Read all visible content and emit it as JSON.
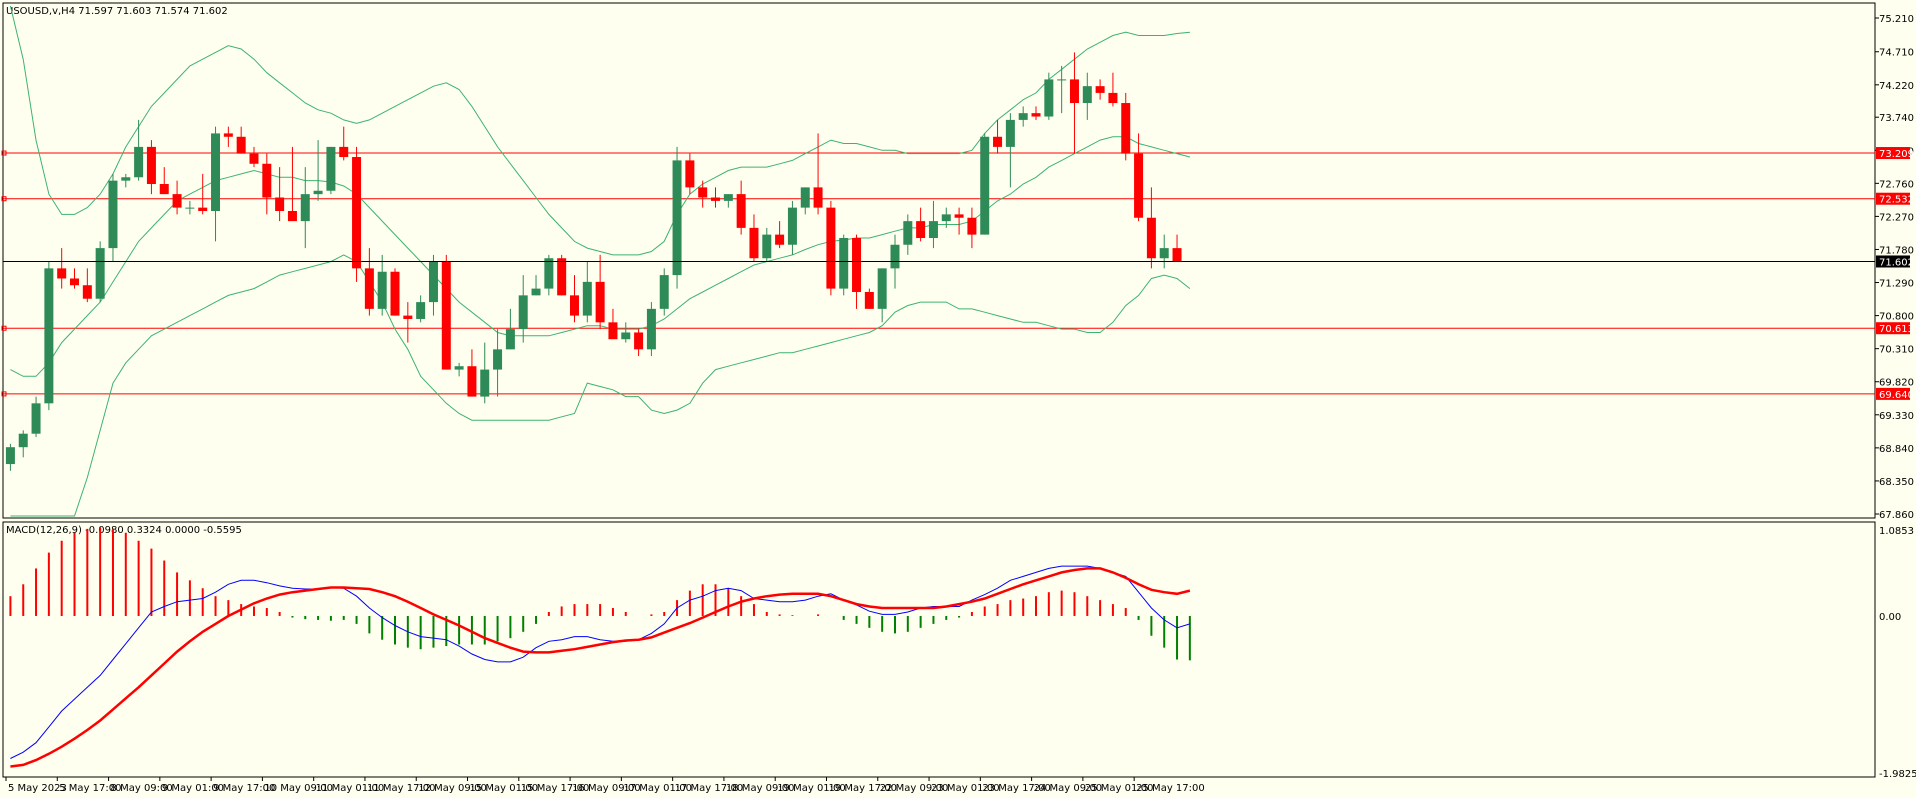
{
  "header": {
    "title": "USOUSD,v,H4  71.597 71.603 71.574 71.602",
    "macd_title": "MACD(12,26,9) -0.0980 0.3324 0.0000 -0.5595"
  },
  "colors": {
    "background": "#fffff0",
    "bull": "#2e8b57",
    "bear": "#ff0000",
    "bands": "#3cb371",
    "level": "#ff0000",
    "macd_line": "#0000ff",
    "signal_line": "#ff0000"
  },
  "chart_data": [
    {
      "type": "candlestick",
      "symbol": "USOUSD,v",
      "timeframe": "H4",
      "ylim": [
        67.86,
        75.21
      ],
      "yticks": [
        "75.210",
        "74.710",
        "74.220",
        "73.740",
        "73.250",
        "72.760",
        "72.270",
        "71.780",
        "71.290",
        "70.800",
        "70.310",
        "69.820",
        "69.330",
        "68.840",
        "68.350",
        "67.860"
      ],
      "xticks": [
        "5 May 2023",
        "5 May 17:00",
        "8 May 09:00",
        "9 May 01:00",
        "9 May 17:00",
        "10 May 09:00",
        "11 May 01:00",
        "11 May 17:00",
        "12 May 09:00",
        "15 May 01:00",
        "15 May 17:00",
        "16 May 09:00",
        "17 May 01:00",
        "17 May 17:00",
        "18 May 09:00",
        "19 May 01:00",
        "19 May 17:00",
        "22 May 09:00",
        "23 May 01:00",
        "23 May 17:00",
        "24 May 09:00",
        "25 May 01:00",
        "25 May 17:00"
      ],
      "current_price": "71.602",
      "levels": [
        "73.209",
        "72.532",
        "70.613",
        "69.640"
      ],
      "ohlc": [
        [
          68.6,
          68.9,
          68.5,
          68.85
        ],
        [
          68.85,
          69.1,
          68.7,
          69.05
        ],
        [
          69.05,
          69.6,
          69.0,
          69.5
        ],
        [
          69.5,
          71.6,
          69.4,
          71.5
        ],
        [
          71.5,
          71.8,
          71.2,
          71.35
        ],
        [
          71.35,
          71.5,
          71.2,
          71.25
        ],
        [
          71.25,
          71.5,
          71.0,
          71.05
        ],
        [
          71.05,
          71.9,
          71.0,
          71.8
        ],
        [
          71.8,
          72.9,
          71.6,
          72.8
        ],
        [
          72.8,
          72.9,
          72.7,
          72.85
        ],
        [
          72.85,
          73.7,
          72.8,
          73.3
        ],
        [
          73.3,
          73.4,
          72.6,
          72.75
        ],
        [
          72.75,
          73.0,
          72.6,
          72.6
        ],
        [
          72.6,
          72.8,
          72.3,
          72.4
        ],
        [
          72.4,
          72.5,
          72.3,
          72.4
        ],
        [
          72.4,
          72.9,
          72.3,
          72.35
        ],
        [
          72.35,
          73.6,
          71.9,
          73.5
        ],
        [
          73.5,
          73.6,
          73.3,
          73.45
        ],
        [
          73.45,
          73.6,
          73.2,
          73.2
        ],
        [
          73.2,
          73.3,
          73.0,
          73.05
        ],
        [
          73.05,
          73.2,
          72.3,
          72.55
        ],
        [
          72.55,
          73.0,
          72.2,
          72.35
        ],
        [
          72.35,
          73.3,
          72.2,
          72.2
        ],
        [
          72.2,
          73.0,
          71.8,
          72.6
        ],
        [
          72.6,
          73.4,
          72.5,
          72.65
        ],
        [
          72.65,
          73.3,
          72.6,
          73.3
        ],
        [
          73.3,
          73.6,
          73.1,
          73.15
        ],
        [
          73.15,
          73.3,
          71.3,
          71.5
        ],
        [
          71.5,
          71.8,
          70.8,
          70.9
        ],
        [
          70.9,
          71.7,
          70.8,
          71.45
        ],
        [
          71.45,
          71.5,
          70.8,
          70.8
        ],
        [
          70.8,
          71.0,
          70.4,
          70.75
        ],
        [
          70.75,
          71.1,
          70.7,
          71.0
        ],
        [
          71.0,
          71.7,
          70.8,
          71.6
        ],
        [
          71.6,
          71.7,
          70.0,
          70.0
        ],
        [
          70.0,
          70.1,
          69.9,
          70.05
        ],
        [
          70.05,
          70.3,
          69.6,
          69.6
        ],
        [
          69.6,
          70.4,
          69.5,
          70.0
        ],
        [
          70.0,
          70.6,
          69.6,
          70.3
        ],
        [
          70.3,
          70.9,
          70.3,
          70.6
        ],
        [
          70.6,
          71.4,
          70.4,
          71.1
        ],
        [
          71.1,
          71.4,
          71.1,
          71.2
        ],
        [
          71.2,
          71.7,
          71.1,
          71.65
        ],
        [
          71.65,
          71.7,
          71.1,
          71.1
        ],
        [
          71.1,
          71.4,
          70.7,
          70.8
        ],
        [
          70.8,
          71.6,
          70.7,
          71.3
        ],
        [
          71.3,
          71.7,
          70.6,
          70.7
        ],
        [
          70.7,
          70.9,
          70.5,
          70.45
        ],
        [
          70.45,
          70.7,
          70.4,
          70.55
        ],
        [
          70.55,
          70.6,
          70.2,
          70.3
        ],
        [
          70.3,
          71.0,
          70.2,
          70.9
        ],
        [
          70.9,
          71.5,
          70.8,
          71.4
        ],
        [
          71.4,
          73.3,
          71.2,
          73.1
        ],
        [
          73.1,
          73.2,
          72.6,
          72.7
        ],
        [
          72.7,
          72.8,
          72.4,
          72.55
        ],
        [
          72.55,
          72.7,
          72.4,
          72.5
        ],
        [
          72.5,
          72.6,
          72.4,
          72.6
        ],
        [
          72.6,
          72.8,
          72.0,
          72.1
        ],
        [
          72.1,
          72.3,
          71.6,
          71.65
        ],
        [
          71.65,
          72.1,
          71.6,
          72.0
        ],
        [
          72.0,
          72.2,
          71.8,
          71.85
        ],
        [
          71.85,
          72.5,
          71.7,
          72.4
        ],
        [
          72.4,
          72.7,
          72.3,
          72.7
        ],
        [
          72.7,
          73.5,
          72.3,
          72.4
        ],
        [
          72.4,
          72.5,
          71.1,
          71.2
        ],
        [
          71.2,
          72.0,
          71.1,
          71.95
        ],
        [
          71.95,
          72.0,
          70.9,
          71.15
        ],
        [
          71.15,
          71.2,
          70.9,
          70.9
        ],
        [
          70.9,
          71.5,
          70.7,
          71.5
        ],
        [
          71.5,
          72.0,
          71.2,
          71.85
        ],
        [
          71.85,
          72.3,
          71.7,
          72.2
        ],
        [
          72.2,
          72.4,
          71.9,
          71.95
        ],
        [
          71.95,
          72.5,
          71.8,
          72.2
        ],
        [
          72.2,
          72.4,
          72.1,
          72.3
        ],
        [
          72.3,
          72.4,
          72.0,
          72.25
        ],
        [
          72.25,
          72.4,
          71.8,
          72.0
        ],
        [
          72.0,
          73.5,
          72.0,
          73.45
        ],
        [
          73.45,
          73.7,
          73.2,
          73.3
        ],
        [
          73.3,
          73.8,
          72.7,
          73.7
        ],
        [
          73.7,
          73.9,
          73.6,
          73.8
        ],
        [
          73.8,
          73.9,
          73.7,
          73.75
        ],
        [
          73.75,
          74.4,
          73.7,
          74.3
        ],
        [
          74.3,
          74.5,
          73.8,
          74.3
        ],
        [
          74.3,
          74.7,
          73.2,
          73.95
        ],
        [
          73.95,
          74.4,
          73.7,
          74.2
        ],
        [
          74.2,
          74.3,
          74.0,
          74.1
        ],
        [
          74.1,
          74.4,
          73.9,
          73.95
        ],
        [
          73.95,
          74.1,
          73.1,
          73.2
        ],
        [
          73.2,
          73.5,
          72.2,
          72.25
        ],
        [
          72.25,
          72.7,
          71.5,
          71.65
        ],
        [
          71.65,
          72.0,
          71.5,
          71.8
        ],
        [
          71.8,
          72.0,
          71.6,
          71.6
        ]
      ],
      "upper_band": [
        75.5,
        74.6,
        73.4,
        72.6,
        72.3,
        72.3,
        72.4,
        72.6,
        72.9,
        73.3,
        73.6,
        73.9,
        74.1,
        74.3,
        74.5,
        74.6,
        74.7,
        74.8,
        74.75,
        74.6,
        74.4,
        74.25,
        74.1,
        73.95,
        73.85,
        73.8,
        73.7,
        73.65,
        73.7,
        73.8,
        73.9,
        74.0,
        74.1,
        74.2,
        74.25,
        74.15,
        73.9,
        73.6,
        73.3,
        73.05,
        72.8,
        72.55,
        72.3,
        72.1,
        71.9,
        71.8,
        71.75,
        71.7,
        71.7,
        71.7,
        71.75,
        71.9,
        72.3,
        72.6,
        72.75,
        72.85,
        72.95,
        73.0,
        73.0,
        73.0,
        73.05,
        73.1,
        73.2,
        73.3,
        73.4,
        73.35,
        73.35,
        73.3,
        73.25,
        73.25,
        73.2,
        73.2,
        73.2,
        73.2,
        73.2,
        73.25,
        73.5,
        73.7,
        73.85,
        74.0,
        74.1,
        74.3,
        74.45,
        74.6,
        74.75,
        74.85,
        74.95,
        75.0,
        74.95,
        74.95,
        74.95,
        74.98,
        75.0
      ],
      "middle_band": [
        70.0,
        69.9,
        69.9,
        70.1,
        70.4,
        70.6,
        70.8,
        71.0,
        71.3,
        71.6,
        71.9,
        72.1,
        72.3,
        72.5,
        72.6,
        72.7,
        72.8,
        72.85,
        72.9,
        72.95,
        72.9,
        72.85,
        72.85,
        72.8,
        72.8,
        72.78,
        72.72,
        72.6,
        72.4,
        72.2,
        72.0,
        71.8,
        71.6,
        71.4,
        71.2,
        71.0,
        70.85,
        70.7,
        70.55,
        70.5,
        70.5,
        70.5,
        70.5,
        70.55,
        70.6,
        70.65,
        70.65,
        70.6,
        70.6,
        70.6,
        70.65,
        70.75,
        70.9,
        71.05,
        71.15,
        71.25,
        71.35,
        71.45,
        71.55,
        71.6,
        71.65,
        71.7,
        71.78,
        71.85,
        71.9,
        71.92,
        71.95,
        71.95,
        72.0,
        72.05,
        72.1,
        72.1,
        72.15,
        72.15,
        72.15,
        72.2,
        72.35,
        72.5,
        72.6,
        72.75,
        72.85,
        73.0,
        73.1,
        73.2,
        73.3,
        73.4,
        73.45,
        73.45,
        73.35,
        73.3,
        73.25,
        73.2,
        73.15
      ],
      "lower_band": [
        64.0,
        64.3,
        64.9,
        66.0,
        67.1,
        67.8,
        68.4,
        69.1,
        69.8,
        70.1,
        70.3,
        70.5,
        70.6,
        70.7,
        70.8,
        70.9,
        71.0,
        71.1,
        71.15,
        71.2,
        71.3,
        71.4,
        71.45,
        71.5,
        71.55,
        71.6,
        71.7,
        71.6,
        71.3,
        71.0,
        70.6,
        70.3,
        69.9,
        69.7,
        69.5,
        69.35,
        69.25,
        69.25,
        69.25,
        69.25,
        69.25,
        69.25,
        69.25,
        69.3,
        69.35,
        69.8,
        69.75,
        69.7,
        69.6,
        69.6,
        69.4,
        69.35,
        69.4,
        69.5,
        69.8,
        70.0,
        70.05,
        70.1,
        70.15,
        70.2,
        70.25,
        70.25,
        70.3,
        70.35,
        70.4,
        70.45,
        70.5,
        70.55,
        70.65,
        70.85,
        70.95,
        71.0,
        71.0,
        71.0,
        70.9,
        70.9,
        70.85,
        70.8,
        70.75,
        70.7,
        70.7,
        70.65,
        70.6,
        70.6,
        70.55,
        70.55,
        70.7,
        70.95,
        71.1,
        71.35,
        71.4,
        71.35,
        71.2
      ]
    },
    {
      "type": "macd",
      "params": "12,26,9",
      "ylim": [
        -1.9825,
        1.0853
      ],
      "yticks": [
        "1.0853",
        "0.00",
        "-1.9825"
      ],
      "histogram": [
        0.25,
        0.4,
        0.6,
        0.8,
        0.95,
        1.05,
        1.1,
        1.12,
        1.1,
        1.05,
        0.95,
        0.85,
        0.7,
        0.55,
        0.45,
        0.35,
        0.25,
        0.2,
        0.15,
        0.12,
        0.1,
        0.05,
        -0.02,
        -0.04,
        -0.05,
        -0.06,
        -0.05,
        -0.1,
        -0.22,
        -0.3,
        -0.36,
        -0.4,
        -0.42,
        -0.4,
        -0.38,
        -0.36,
        -0.36,
        -0.36,
        -0.32,
        -0.28,
        -0.2,
        -0.1,
        0.05,
        0.12,
        0.15,
        0.15,
        0.15,
        0.1,
        0.05,
        0.0,
        0.02,
        0.05,
        0.2,
        0.32,
        0.4,
        0.4,
        0.35,
        0.25,
        0.15,
        0.05,
        0.02,
        0.01,
        0.0,
        0.02,
        0.0,
        -0.05,
        -0.1,
        -0.15,
        -0.2,
        -0.22,
        -0.2,
        -0.15,
        -0.1,
        -0.05,
        -0.02,
        0.05,
        0.12,
        0.15,
        0.2,
        0.22,
        0.25,
        0.3,
        0.32,
        0.3,
        0.25,
        0.2,
        0.15,
        0.1,
        -0.05,
        -0.25,
        -0.4,
        -0.55,
        -0.56
      ],
      "macd": [
        -1.8,
        -1.72,
        -1.6,
        -1.4,
        -1.2,
        -1.05,
        -0.9,
        -0.75,
        -0.55,
        -0.35,
        -0.15,
        0.05,
        0.12,
        0.18,
        0.2,
        0.22,
        0.3,
        0.4,
        0.45,
        0.45,
        0.42,
        0.38,
        0.35,
        0.34,
        0.34,
        0.36,
        0.35,
        0.25,
        0.1,
        -0.02,
        -0.12,
        -0.2,
        -0.26,
        -0.28,
        -0.3,
        -0.38,
        -0.48,
        -0.55,
        -0.58,
        -0.58,
        -0.52,
        -0.4,
        -0.32,
        -0.3,
        -0.26,
        -0.26,
        -0.3,
        -0.32,
        -0.32,
        -0.3,
        -0.22,
        -0.1,
        0.1,
        0.2,
        0.25,
        0.32,
        0.35,
        0.32,
        0.22,
        0.2,
        0.18,
        0.18,
        0.2,
        0.25,
        0.28,
        0.2,
        0.14,
        0.06,
        0.02,
        0.02,
        0.05,
        0.1,
        0.12,
        0.12,
        0.12,
        0.2,
        0.27,
        0.35,
        0.45,
        0.5,
        0.55,
        0.6,
        0.63,
        0.63,
        0.63,
        0.6,
        0.55,
        0.5,
        0.3,
        0.1,
        -0.05,
        -0.15,
        -0.1
      ],
      "signal": [
        -1.9,
        -1.88,
        -1.82,
        -1.74,
        -1.65,
        -1.55,
        -1.44,
        -1.32,
        -1.18,
        -1.04,
        -0.9,
        -0.75,
        -0.6,
        -0.45,
        -0.32,
        -0.2,
        -0.1,
        0.0,
        0.08,
        0.16,
        0.22,
        0.27,
        0.3,
        0.32,
        0.34,
        0.36,
        0.36,
        0.35,
        0.34,
        0.3,
        0.25,
        0.18,
        0.1,
        0.02,
        -0.05,
        -0.12,
        -0.2,
        -0.28,
        -0.34,
        -0.4,
        -0.45,
        -0.46,
        -0.46,
        -0.44,
        -0.42,
        -0.39,
        -0.36,
        -0.33,
        -0.31,
        -0.3,
        -0.27,
        -0.21,
        -0.15,
        -0.09,
        -0.02,
        0.05,
        0.12,
        0.18,
        0.22,
        0.25,
        0.27,
        0.28,
        0.28,
        0.28,
        0.25,
        0.2,
        0.15,
        0.12,
        0.1,
        0.1,
        0.1,
        0.1,
        0.1,
        0.12,
        0.15,
        0.18,
        0.22,
        0.28,
        0.34,
        0.4,
        0.45,
        0.5,
        0.55,
        0.58,
        0.6,
        0.6,
        0.55,
        0.48,
        0.4,
        0.33,
        0.3,
        0.28,
        0.32
      ]
    }
  ]
}
